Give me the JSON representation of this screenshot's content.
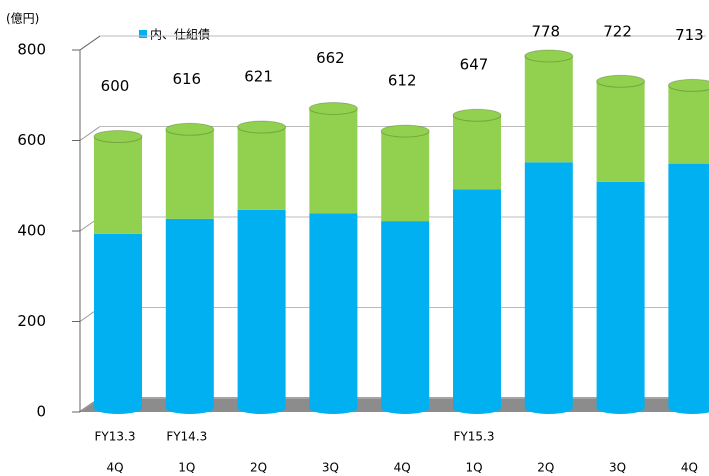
{
  "chart_data": {
    "type": "bar",
    "stacked": true,
    "unit_label": "(億円)",
    "categories": [
      "4Q",
      "1Q",
      "2Q",
      "3Q",
      "4Q",
      "1Q",
      "2Q",
      "3Q",
      "4Q"
    ],
    "year_labels": [
      "FY13.3",
      "FY14.3",
      null,
      null,
      null,
      "FY15.3",
      null,
      null,
      null
    ],
    "series": [
      {
        "name": "内、仕組債",
        "color": "#00b0f0",
        "values": [
          385,
          418,
          438,
          430,
          413,
          483,
          543,
          500,
          540
        ]
      },
      {
        "color": "#92d050",
        "values": [
          215,
          198,
          183,
          232,
          199,
          164,
          235,
          222,
          173
        ]
      }
    ],
    "totals": [
      600,
      616,
      621,
      662,
      612,
      647,
      778,
      722,
      713
    ],
    "ylim": [
      0,
      800
    ],
    "yticks": [
      0,
      200,
      400,
      600,
      800
    ],
    "grid": true
  }
}
